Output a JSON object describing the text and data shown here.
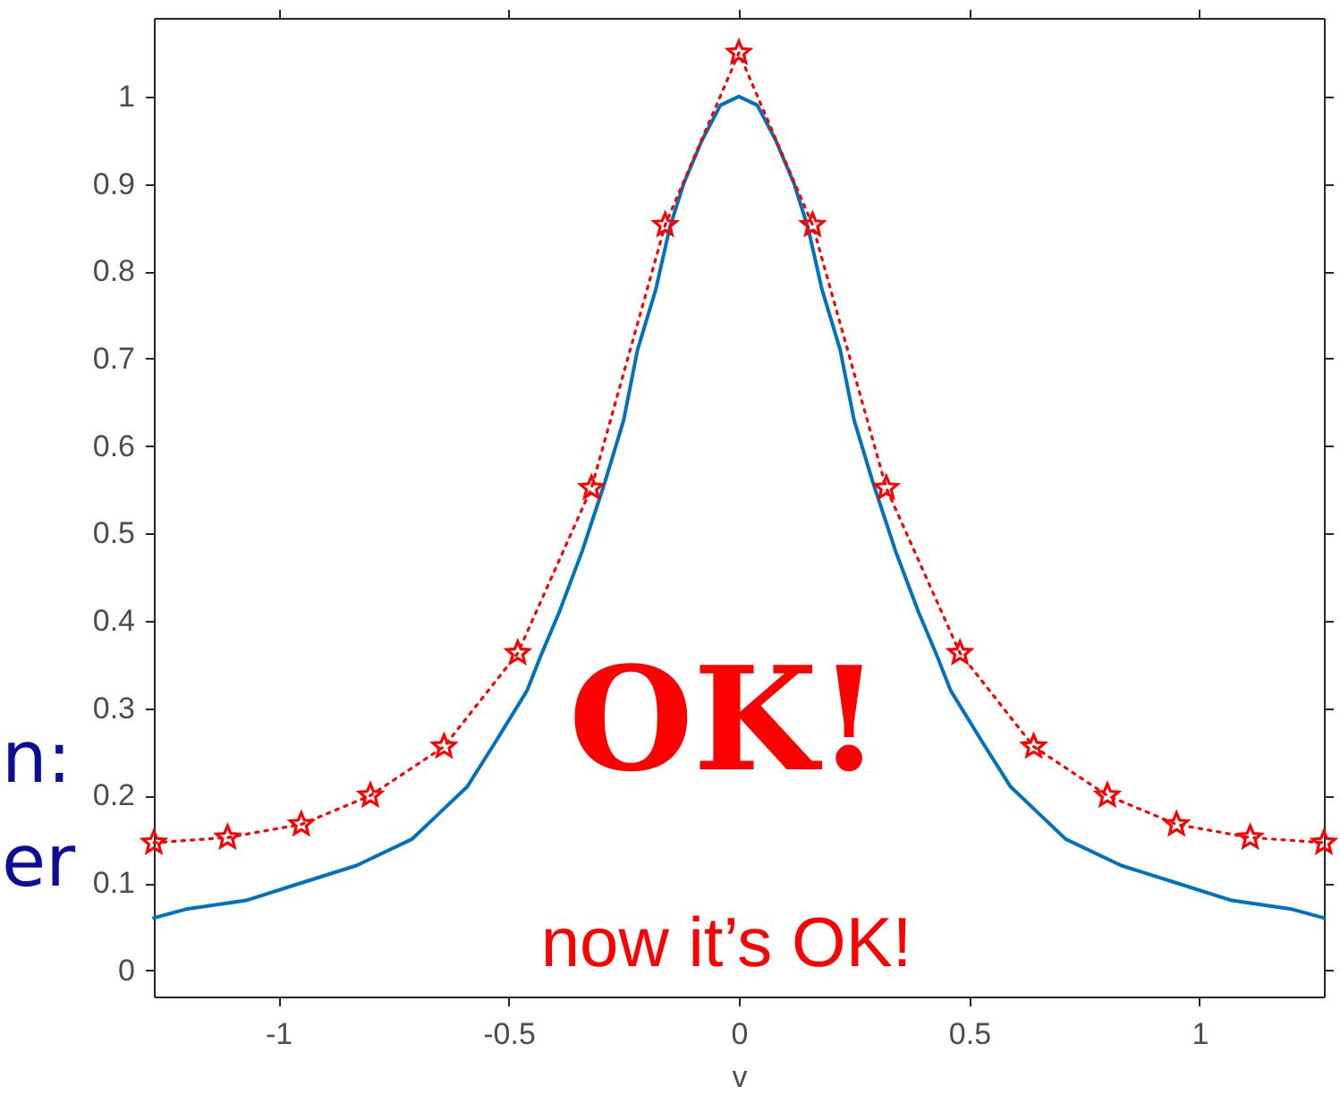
{
  "chart_data": {
    "type": "line",
    "xlabel": "v",
    "annotations": [
      "OK!",
      "now it’s OK!",
      "n:",
      "er"
    ],
    "xlim": [
      -1.27,
      1.27
    ],
    "ylim": [
      -0.03,
      1.09
    ],
    "xticks": [
      -1,
      -0.5,
      0,
      0.5,
      1
    ],
    "yticks": [
      0,
      0.1,
      0.2,
      0.3,
      0.4,
      0.5,
      0.6,
      0.7,
      0.8,
      0.9,
      1
    ],
    "series": [
      {
        "color": "#0072bd",
        "marker": "none",
        "line_style": "solid",
        "x": [
          -1.27,
          -1.2,
          -1.07,
          -0.95,
          -0.83,
          -0.71,
          -0.65,
          -0.59,
          -0.53,
          -0.46,
          -0.43,
          -0.39,
          -0.34,
          -0.29,
          -0.25,
          -0.22,
          -0.18,
          -0.15,
          -0.12,
          -0.08,
          -0.04,
          0,
          0.04,
          0.08,
          0.12,
          0.15,
          0.18,
          0.22,
          0.25,
          0.29,
          0.34,
          0.39,
          0.43,
          0.46,
          0.53,
          0.59,
          0.65,
          0.71,
          0.83,
          0.95,
          1.07,
          1.2,
          1.27
        ],
        "values": [
          0.06,
          0.07,
          0.08,
          0.1,
          0.12,
          0.15,
          0.18,
          0.21,
          0.26,
          0.32,
          0.36,
          0.41,
          0.48,
          0.56,
          0.63,
          0.71,
          0.78,
          0.85,
          0.9,
          0.95,
          0.99,
          1.0,
          0.99,
          0.95,
          0.9,
          0.85,
          0.78,
          0.71,
          0.63,
          0.56,
          0.48,
          0.41,
          0.36,
          0.32,
          0.26,
          0.21,
          0.18,
          0.15,
          0.12,
          0.1,
          0.08,
          0.07,
          0.06
        ]
      },
      {
        "color": "#ff0000",
        "marker": "star",
        "line_style": "dotted",
        "x": [
          -1.27,
          -1.11,
          -0.95,
          -0.8,
          -0.64,
          -0.48,
          -0.32,
          -0.16,
          0,
          0.16,
          0.32,
          0.48,
          0.64,
          0.8,
          0.95,
          1.11,
          1.27
        ],
        "values": [
          0.146,
          0.152,
          0.167,
          0.2,
          0.256,
          0.363,
          0.552,
          0.853,
          1.05,
          0.853,
          0.552,
          0.363,
          0.256,
          0.2,
          0.167,
          0.152,
          0.146
        ]
      }
    ]
  }
}
